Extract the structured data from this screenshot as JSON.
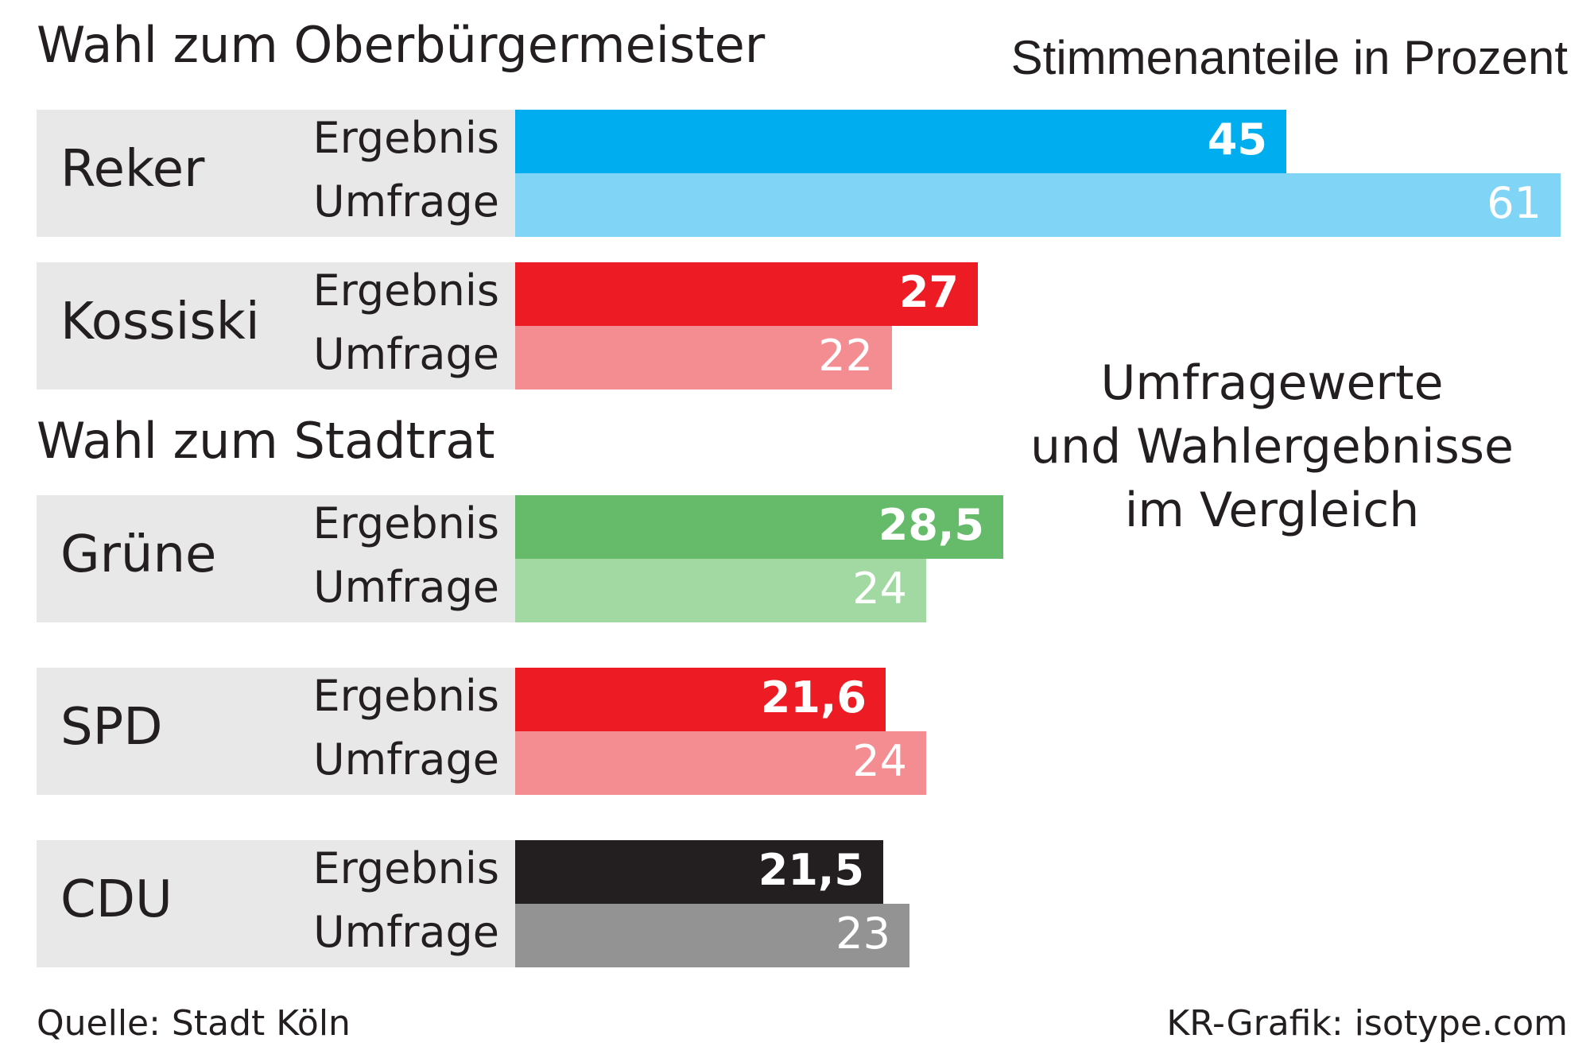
{
  "sections": [
    {
      "title": "Wahl zum Oberbürgermeister"
    },
    {
      "title": "Wahl zum Stadtrat"
    }
  ],
  "subtitle": "Stimmenanteile in Prozent",
  "headline": [
    "Umfragewerte",
    "und Wahlergebnisse",
    "im Vergleich"
  ],
  "source": "Quelle: Stadt Köln",
  "credit": "KR-Grafik: isotype.com",
  "chart_data": {
    "type": "bar",
    "orientation": "horizontal",
    "unit": "Prozent",
    "categories": [
      "Reker",
      "Kossiski",
      "Grüne",
      "SPD",
      "CDU"
    ],
    "groups": [
      {
        "name": "Reker",
        "section": 0,
        "rows": [
          {
            "label": "Ergebnis",
            "value": 45,
            "display": "45",
            "color": "#00aeef"
          },
          {
            "label": "Umfrage",
            "value": 61,
            "display": "61",
            "color": "#80d4f6"
          }
        ]
      },
      {
        "name": "Kossiski",
        "section": 0,
        "rows": [
          {
            "label": "Ergebnis",
            "value": 27,
            "display": "27",
            "color": "#ed1c24"
          },
          {
            "label": "Umfrage",
            "value": 22,
            "display": "22",
            "color": "#f48d92"
          }
        ]
      },
      {
        "name": "Grüne",
        "section": 1,
        "rows": [
          {
            "label": "Ergebnis",
            "value": 28.5,
            "display": "28,5",
            "color": "#66bb6a"
          },
          {
            "label": "Umfrage",
            "value": 24,
            "display": "24",
            "color": "#a2d9a3"
          }
        ]
      },
      {
        "name": "SPD",
        "section": 1,
        "rows": [
          {
            "label": "Ergebnis",
            "value": 21.6,
            "display": "21,6",
            "color": "#ed1c24"
          },
          {
            "label": "Umfrage",
            "value": 24,
            "display": "24",
            "color": "#f48d92"
          }
        ]
      },
      {
        "name": "CDU",
        "section": 1,
        "rows": [
          {
            "label": "Ergebnis",
            "value": 21.5,
            "display": "21,5",
            "color": "#231f20"
          },
          {
            "label": "Umfrage",
            "value": 23,
            "display": "23",
            "color": "#939393"
          }
        ]
      }
    ],
    "xlim": [
      0,
      61
    ],
    "grid": false
  }
}
